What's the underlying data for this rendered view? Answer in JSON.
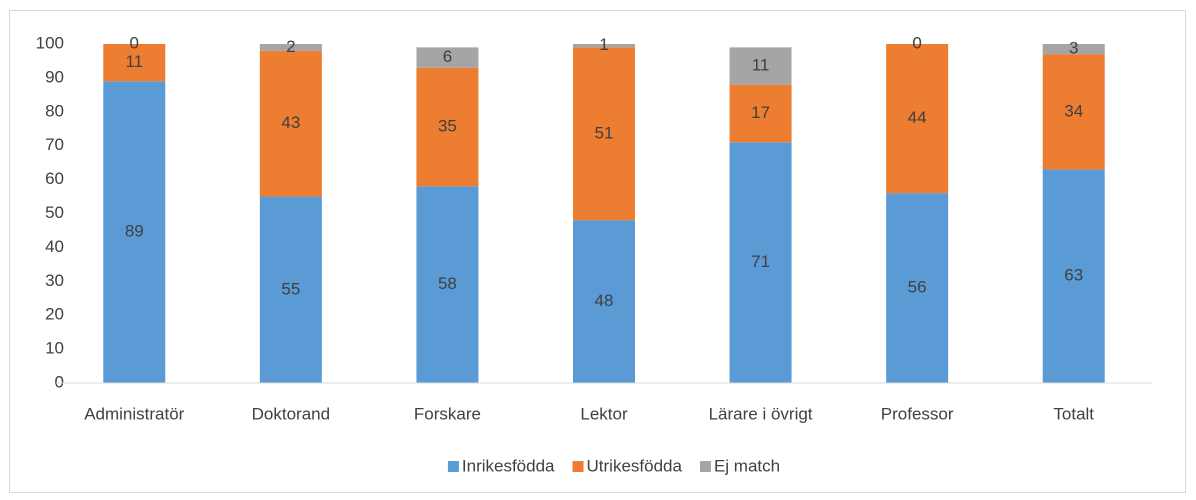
{
  "chart_data": {
    "type": "stacked_bar",
    "categories": [
      "Administratör",
      "Doktorand",
      "Forskare",
      "Lektor",
      "Lärare i övrigt",
      "Professor",
      "Totalt"
    ],
    "series": [
      {
        "name": "Inrikesfödda",
        "color": "#5b9bd5",
        "values": [
          89,
          55,
          58,
          48,
          71,
          56,
          63
        ]
      },
      {
        "name": "Utrikesfödda",
        "color": "#ed7d31",
        "values": [
          11,
          43,
          35,
          51,
          17,
          44,
          34
        ]
      },
      {
        "name": "Ej match",
        "color": "#a5a5a5",
        "values": [
          0,
          2,
          6,
          1,
          11,
          0,
          3
        ]
      }
    ],
    "ylim": [
      0,
      100
    ],
    "yticks": [
      0,
      10,
      20,
      30,
      40,
      50,
      60,
      70,
      80,
      90,
      100
    ],
    "grid": false,
    "legend": "bottom"
  }
}
